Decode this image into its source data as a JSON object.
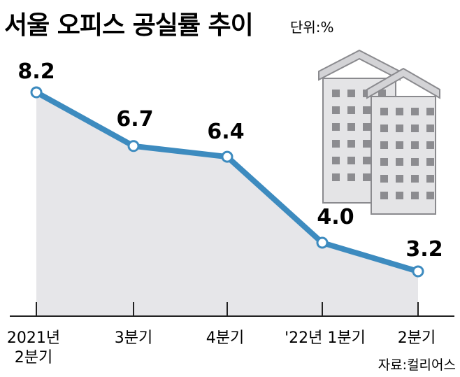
{
  "chart_data": {
    "type": "line",
    "title": "서울 오피스 공실률 추이",
    "unit_label": "단위:%",
    "categories": [
      [
        "2021년",
        "2분기"
      ],
      [
        "3분기"
      ],
      [
        "4분기"
      ],
      [
        "'22년 1분기"
      ],
      [
        "2분기"
      ]
    ],
    "values": [
      8.2,
      6.7,
      6.4,
      4.0,
      3.2
    ],
    "value_labels": [
      "8.2",
      "6.7",
      "6.4",
      "4.0",
      "3.2"
    ],
    "source": "자료:컬리어스",
    "grid": false,
    "legend": "none"
  },
  "colors": {
    "line": "#3d8bbf",
    "area": "#e6e6e9",
    "building_fill": "#e4e4e6",
    "building_stroke": "#8a8a8e",
    "window": "#8c8c90",
    "axis": "#222222"
  },
  "icons": [
    "office-building-icon"
  ]
}
